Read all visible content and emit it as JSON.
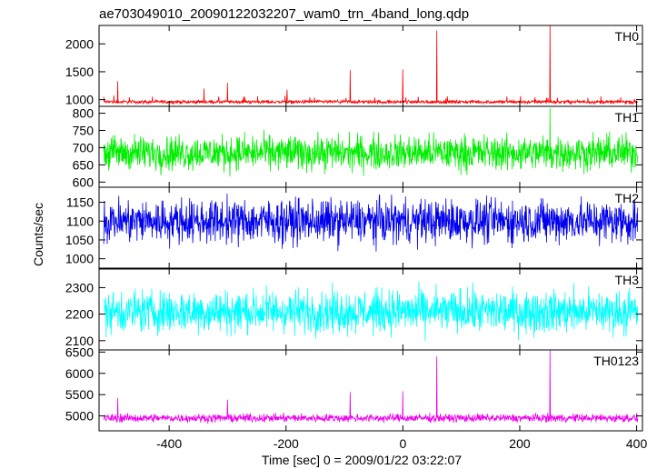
{
  "title": "ae703049010_20090122032207_wam0_trn_4band_long.qdp",
  "xlabel": "Time [sec] 0 = 2009/01/22 03:22:07",
  "ylabel": "Counts/sec",
  "chart_data": [
    {
      "type": "line",
      "panel_label": "TH0",
      "color": "#ff0000",
      "xlim": [
        -520,
        410
      ],
      "ylim": [
        880,
        2330
      ],
      "yticks": [
        1000,
        1500,
        2000
      ],
      "baseline": 960,
      "noise_amplitude": 45,
      "spikes": [
        {
          "x": -488,
          "y": 1330
        },
        {
          "x": -340,
          "y": 1200
        },
        {
          "x": -300,
          "y": 1300
        },
        {
          "x": -198,
          "y": 1180
        },
        {
          "x": -90,
          "y": 1530
        },
        {
          "x": 0,
          "y": 1540
        },
        {
          "x": 58,
          "y": 2240
        },
        {
          "x": 252,
          "y": 2330
        }
      ]
    },
    {
      "type": "line",
      "panel_label": "TH1",
      "color": "#00ee00",
      "xlim": [
        -520,
        410
      ],
      "ylim": [
        585,
        820
      ],
      "yticks": [
        600,
        650,
        700,
        750,
        800
      ],
      "baseline": 685,
      "noise_amplitude": 75,
      "spikes": [
        {
          "x": 252,
          "y": 815
        }
      ]
    },
    {
      "type": "line",
      "panel_label": "TH2",
      "color": "#0000ee",
      "xlim": [
        -520,
        410
      ],
      "ylim": [
        975,
        1190
      ],
      "yticks": [
        1000,
        1050,
        1100,
        1150
      ],
      "baseline": 1100,
      "noise_amplitude": 85,
      "spikes": []
    },
    {
      "type": "line",
      "panel_label": "TH3",
      "color": "#00ffff",
      "xlim": [
        -520,
        410
      ],
      "ylim": [
        2065,
        2370
      ],
      "yticks": [
        2100,
        2200,
        2300
      ],
      "baseline": 2210,
      "noise_amplitude": 120,
      "spikes": []
    },
    {
      "type": "line",
      "panel_label": "TH0123",
      "color": "#ee00ee",
      "xlim": [
        -520,
        410
      ],
      "ylim": [
        4650,
        6550
      ],
      "yticks": [
        5000,
        5500,
        6000,
        6500
      ],
      "baseline": 4950,
      "noise_amplitude": 140,
      "spikes": [
        {
          "x": -488,
          "y": 5420
        },
        {
          "x": -300,
          "y": 5380
        },
        {
          "x": -90,
          "y": 5560
        },
        {
          "x": 0,
          "y": 5580
        },
        {
          "x": 58,
          "y": 6400
        },
        {
          "x": 252,
          "y": 6550
        }
      ]
    }
  ],
  "xticks": [
    -400,
    -200,
    0,
    200,
    400
  ]
}
